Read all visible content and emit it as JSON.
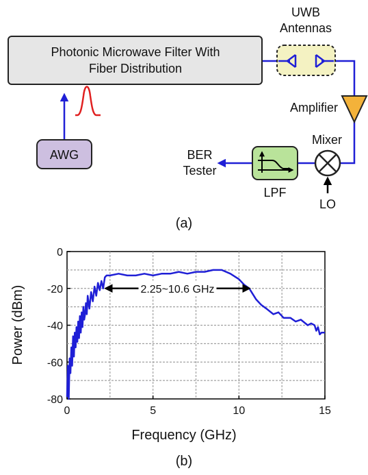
{
  "colors": {
    "signal_line": "#1f1fd6",
    "pulse": "#e02020",
    "filter_box_fill": "#e6e6e6",
    "awg_fill": "#cdbfe0",
    "antenna_fill": "#f4f2c2",
    "amplifier_fill": "#f3b23a",
    "lpf_fill": "#b9e39a",
    "grid": "#a0a0a0"
  },
  "diagram": {
    "filter_box": {
      "label_line1": "Photonic Microwave Filter With",
      "label_line2": "Fiber Distribution"
    },
    "awg": {
      "label": "AWG"
    },
    "antennas": {
      "label_line1": "UWB",
      "label_line2": "Antennas"
    },
    "amplifier": {
      "label": "Amplifier"
    },
    "mixer": {
      "label": "Mixer"
    },
    "lo": {
      "label": "LO"
    },
    "lpf": {
      "label": "LPF"
    },
    "ber_tester": {
      "label_line1": "BER",
      "label_line2": "Tester"
    },
    "caption_a": "(a)"
  },
  "chart_data": {
    "type": "line",
    "xlabel": "Frequency (GHz)",
    "ylabel": "Power (dBm)",
    "xlim": [
      0,
      15
    ],
    "ylim": [
      -80,
      0
    ],
    "x_ticks": [
      "0",
      "5",
      "10",
      "15"
    ],
    "y_ticks": [
      "0",
      "-20",
      "-40",
      "-60",
      "-80"
    ],
    "grid": true,
    "annotation": "2.25~10.6 GHz",
    "annotation_range": [
      2.25,
      10.6
    ],
    "annotation_y": -20,
    "caption": "(b)",
    "series": [
      {
        "x": [
          0.0,
          0.05,
          0.1,
          0.15,
          0.2,
          0.25,
          0.3,
          0.35,
          0.4,
          0.45,
          0.5,
          0.55,
          0.6,
          0.65,
          0.7,
          0.75,
          0.8,
          0.85,
          0.9,
          0.95,
          1.0,
          1.05,
          1.1,
          1.15,
          1.2,
          1.3,
          1.4,
          1.5,
          1.6,
          1.7,
          1.8,
          1.9,
          2.0,
          2.1,
          2.2,
          2.3,
          2.5,
          3.0,
          3.5,
          4.0,
          4.5,
          5.0,
          5.5,
          6.0,
          6.5,
          7.0,
          7.5,
          8.0,
          8.5,
          9.0,
          9.5,
          10.0,
          10.3,
          10.6,
          10.8,
          11.0,
          11.3,
          11.6,
          12.0,
          12.3,
          12.6,
          13.0,
          13.3,
          13.6,
          14.0,
          14.2,
          14.4,
          14.5,
          14.6,
          14.7,
          14.8,
          15.0
        ],
        "y": [
          -79,
          -62,
          -80,
          -58,
          -66,
          -52,
          -62,
          -46,
          -57,
          -44,
          -52,
          -41,
          -49,
          -38,
          -47,
          -35,
          -44,
          -33,
          -41,
          -30,
          -37,
          -34,
          -28,
          -34,
          -24,
          -31,
          -22,
          -27,
          -19,
          -24,
          -17,
          -21,
          -16,
          -20,
          -14,
          -13,
          -13,
          -12,
          -13,
          -13,
          -12,
          -13,
          -12,
          -12,
          -11,
          -12,
          -11,
          -11,
          -10,
          -10,
          -12,
          -15,
          -18,
          -20,
          -23,
          -26,
          -29,
          -31,
          -34,
          -33,
          -36,
          -36,
          -38,
          -37,
          -40,
          -39,
          -40,
          -43,
          -41,
          -45,
          -44,
          -44
        ]
      }
    ]
  }
}
